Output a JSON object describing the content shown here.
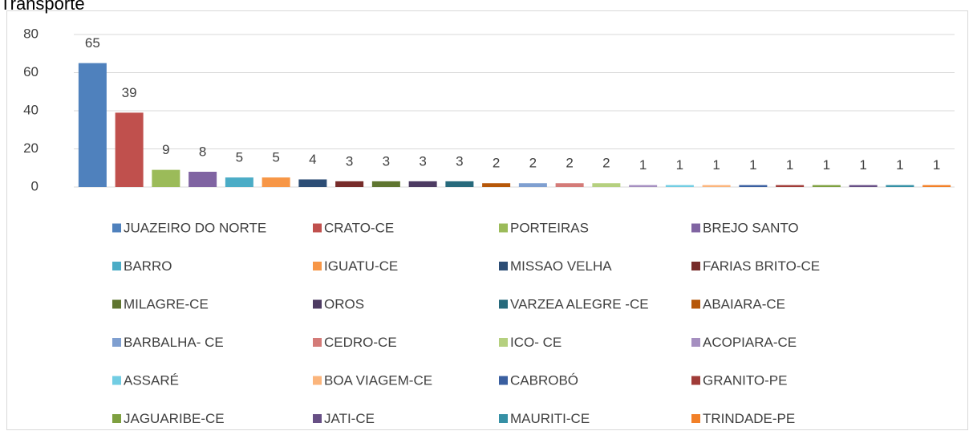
{
  "chart_data": {
    "type": "bar",
    "title": "Transporte",
    "ylim": [
      0,
      80
    ],
    "yticks": [
      0,
      20,
      40,
      60,
      80
    ],
    "grid": true,
    "series": [
      {
        "name": "JUAZEIRO DO  NORTE",
        "color": "#4f81bd",
        "values": [
          65
        ]
      },
      {
        "name": "CRATO-CE",
        "color": "#c0504d",
        "values": [
          39
        ]
      },
      {
        "name": "PORTEIRAS",
        "color": "#9bbb59",
        "values": [
          9
        ]
      },
      {
        "name": "BREJO SANTO",
        "color": "#8064a2",
        "values": [
          8
        ]
      },
      {
        "name": "BARRO",
        "color": "#4bacc6",
        "values": [
          5
        ]
      },
      {
        "name": "IGUATU-CE",
        "color": "#f79646",
        "values": [
          5
        ]
      },
      {
        "name": "MISSAO VELHA",
        "color": "#2c4d75",
        "values": [
          4
        ]
      },
      {
        "name": "FARIAS BRITO-CE",
        "color": "#772c2a",
        "values": [
          3
        ]
      },
      {
        "name": "MILAGRE-CE",
        "color": "#5f7530",
        "values": [
          3
        ]
      },
      {
        "name": "OROS",
        "color": "#4d3b62",
        "values": [
          3
        ]
      },
      {
        "name": "VARZEA ALEGRE -CE",
        "color": "#276a7c",
        "values": [
          3
        ]
      },
      {
        "name": "ABAIARA-CE",
        "color": "#b65708",
        "values": [
          2
        ]
      },
      {
        "name": "BARBALHA- CE",
        "color": "#7f9fd0",
        "values": [
          2
        ]
      },
      {
        "name": "CEDRO-CE",
        "color": "#d47b78",
        "values": [
          2
        ]
      },
      {
        "name": "ICO- CE",
        "color": "#b5d07f",
        "values": [
          2
        ]
      },
      {
        "name": "ACOPIARA-CE",
        "color": "#a58fc0",
        "values": [
          1
        ]
      },
      {
        "name": "ASSARÉ",
        "color": "#72cde3",
        "values": [
          1
        ]
      },
      {
        "name": "BOA VIAGEM-CE",
        "color": "#fbb57c",
        "values": [
          1
        ]
      },
      {
        "name": "CABROBÓ",
        "color": "#3a5fa0",
        "values": [
          1
        ]
      },
      {
        "name": "GRANITO-PE",
        "color": "#a03c38",
        "values": [
          1
        ]
      },
      {
        "name": "JAGUARIBE-CE",
        "color": "#7ea040",
        "values": [
          1
        ]
      },
      {
        "name": "JATI-CE",
        "color": "#674f85",
        "values": [
          1
        ]
      },
      {
        "name": "MAURITI-CE",
        "color": "#3590a5",
        "values": [
          1
        ]
      },
      {
        "name": "TRINDADE-PE",
        "color": "#f28028",
        "values": [
          1
        ]
      }
    ]
  }
}
